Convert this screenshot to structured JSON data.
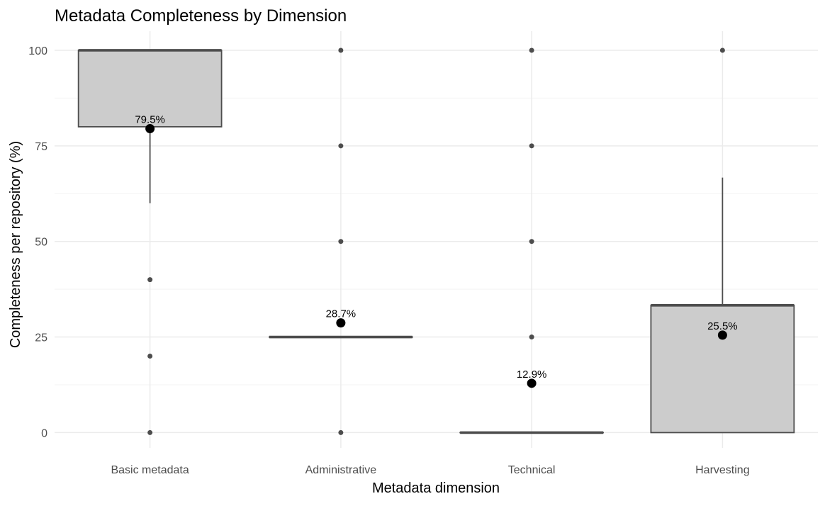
{
  "chart_data": {
    "type": "boxplot",
    "title": "Metadata Completeness by Dimension",
    "xlabel": "Metadata dimension",
    "ylabel": "Completeness per repository (%)",
    "ylim": [
      -4,
      105
    ],
    "yticks": [
      0,
      25,
      50,
      75,
      100
    ],
    "grid": true,
    "legend": "none",
    "categories": [
      "Basic metadata",
      "Administrative",
      "Technical",
      "Harvesting"
    ],
    "boxes": [
      {
        "category": "Basic metadata",
        "q1": 80,
        "median": 100,
        "q3": 100,
        "whisker_low": 60,
        "whisker_high": 100,
        "outliers": [
          0,
          20,
          40
        ],
        "mean": 79.5,
        "mean_label": "79.5%"
      },
      {
        "category": "Administrative",
        "q1": 25,
        "median": 25,
        "q3": 25,
        "whisker_low": 25,
        "whisker_high": 25,
        "outliers": [
          0,
          50,
          75,
          100
        ],
        "mean": 28.7,
        "mean_label": "28.7%"
      },
      {
        "category": "Technical",
        "q1": 0,
        "median": 0,
        "q3": 0,
        "whisker_low": 0,
        "whisker_high": 0,
        "outliers": [
          25,
          50,
          75,
          100
        ],
        "mean": 12.9,
        "mean_label": "12.9%"
      },
      {
        "category": "Harvesting",
        "q1": 0,
        "median": 33.3,
        "q3": 33.3,
        "whisker_low": 0,
        "whisker_high": 66.7,
        "outliers": [
          100
        ],
        "mean": 25.5,
        "mean_label": "25.5%"
      }
    ],
    "colors": {
      "box_fill": "#cccccc",
      "box_line": "#4d4d4d",
      "outlier": "#4d4d4d",
      "mean": "#000000",
      "grid_major": "#ebebeb",
      "grid_minor": "#f3f3f3"
    }
  }
}
